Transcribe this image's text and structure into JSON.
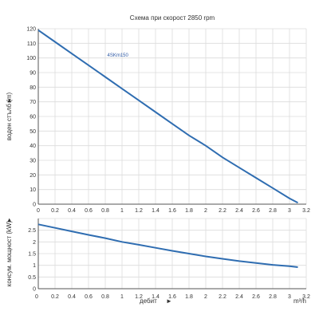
{
  "chart_data": [
    {
      "type": "line",
      "title": "Схема при скорост 2850 rpm",
      "ylabel": "воден стълб (m)",
      "ylabel_arrow": "▲",
      "xlim": [
        0,
        3.2
      ],
      "ylim": [
        0,
        120
      ],
      "x_ticks": [
        "0",
        "0.2",
        "0.4",
        "0.6",
        "0.8",
        "1",
        "1.2",
        "1.4",
        "1.6",
        "1.8",
        "2",
        "2.2",
        "2.4",
        "2.6",
        "2.8",
        "3",
        "3.2"
      ],
      "y_ticks": [
        "0",
        "10",
        "20",
        "30",
        "40",
        "50",
        "60",
        "70",
        "80",
        "90",
        "100",
        "110",
        "120"
      ],
      "grid": true,
      "series": [
        {
          "name": "4SKm150",
          "color": "#2f6db1",
          "x": [
            0,
            0.2,
            0.4,
            0.6,
            0.8,
            1.0,
            1.2,
            1.4,
            1.6,
            1.8,
            2.0,
            2.2,
            2.4,
            2.6,
            2.8,
            3.0,
            3.1
          ],
          "y": [
            119,
            111,
            103,
            95,
            87,
            79,
            71,
            63,
            55,
            47,
            40,
            32,
            25,
            18,
            11,
            4,
            1
          ]
        }
      ]
    },
    {
      "type": "line",
      "title": "",
      "ylabel": "консум. мощност (kW)",
      "ylabel_arrow": "▲",
      "xlabel": "дебит",
      "xlabel_arrow": "►",
      "xunit": "m³/h",
      "xlim": [
        0,
        3.2
      ],
      "ylim": [
        0,
        3
      ],
      "x_ticks": [
        "0.2",
        "0.4",
        "0.6",
        "0.8",
        "1",
        "1.2",
        "1.4",
        "1.6",
        "1.8",
        "2",
        "2.2",
        "2.4",
        "2.6",
        "2.8",
        "3",
        "3.2"
      ],
      "y_ticks": [
        "0",
        "0.5",
        "1",
        "1.5",
        "2",
        "2.5"
      ],
      "grid": true,
      "series": [
        {
          "color": "#2f6db1",
          "x": [
            0,
            0.2,
            0.4,
            0.6,
            0.8,
            1.0,
            1.2,
            1.4,
            1.6,
            1.8,
            2.0,
            2.2,
            2.4,
            2.6,
            2.8,
            3.0,
            3.1
          ],
          "y": [
            2.75,
            2.6,
            2.45,
            2.3,
            2.16,
            2.0,
            1.88,
            1.75,
            1.62,
            1.5,
            1.38,
            1.28,
            1.18,
            1.1,
            1.02,
            0.96,
            0.92
          ]
        }
      ]
    }
  ]
}
